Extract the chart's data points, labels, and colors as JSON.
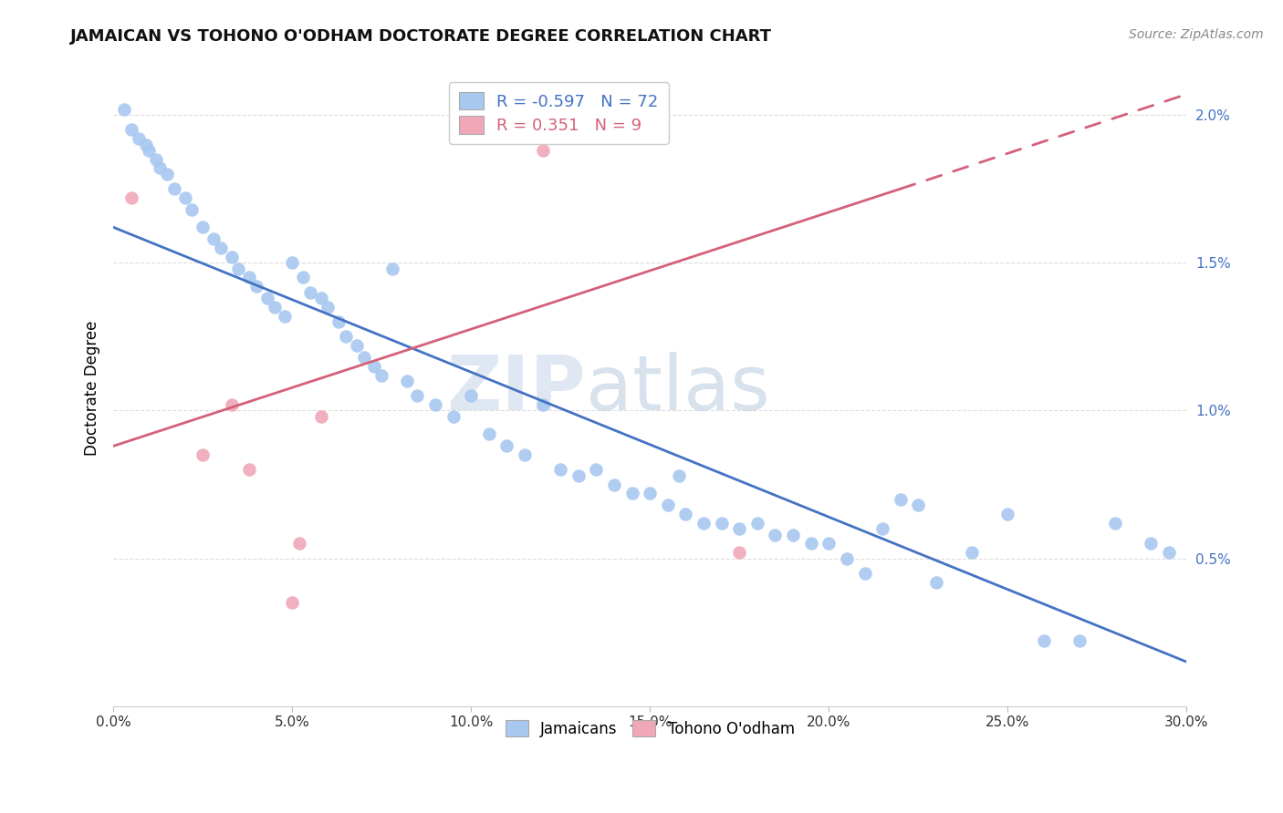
{
  "title": "JAMAICAN VS TOHONO O'ODHAM DOCTORATE DEGREE CORRELATION CHART",
  "source": "Source: ZipAtlas.com",
  "ylabel": "Doctorate Degree",
  "xmin": 0.0,
  "xmax": 30.0,
  "ymin": 0.0,
  "ymax": 2.15,
  "yticks": [
    0.5,
    1.0,
    1.5,
    2.0
  ],
  "xtick_vals": [
    0.0,
    5.0,
    10.0,
    15.0,
    20.0,
    25.0,
    30.0
  ],
  "legend_blue_r": "-0.597",
  "legend_blue_n": "72",
  "legend_pink_r": " 0.351",
  "legend_pink_n": " 9",
  "watermark_zip": "ZIP",
  "watermark_atlas": "atlas",
  "blue_color": "#A8C8F0",
  "pink_color": "#F0A8B8",
  "line_blue": "#4472C4",
  "line_pink": "#D4607A",
  "blue_x": [
    0.3,
    0.5,
    0.7,
    0.9,
    1.0,
    1.2,
    1.3,
    1.5,
    1.7,
    2.0,
    2.2,
    2.5,
    2.8,
    3.0,
    3.3,
    3.5,
    3.8,
    4.0,
    4.3,
    4.5,
    4.8,
    5.0,
    5.3,
    5.5,
    5.8,
    6.0,
    6.3,
    6.5,
    6.8,
    7.0,
    7.3,
    7.5,
    7.8,
    8.2,
    8.5,
    9.0,
    9.5,
    10.0,
    10.5,
    11.0,
    11.5,
    12.0,
    12.5,
    13.0,
    13.5,
    14.0,
    14.5,
    15.0,
    15.5,
    16.0,
    16.5,
    17.0,
    17.5,
    18.0,
    18.5,
    19.0,
    19.5,
    20.0,
    20.5,
    21.0,
    22.0,
    22.5,
    23.0,
    24.0,
    25.0,
    26.0,
    27.0,
    28.0,
    29.0,
    29.5,
    15.8,
    21.5
  ],
  "blue_y": [
    2.02,
    1.95,
    1.92,
    1.9,
    1.88,
    1.85,
    1.82,
    1.8,
    1.75,
    1.72,
    1.68,
    1.62,
    1.58,
    1.55,
    1.52,
    1.48,
    1.45,
    1.42,
    1.38,
    1.35,
    1.32,
    1.5,
    1.45,
    1.4,
    1.38,
    1.35,
    1.3,
    1.25,
    1.22,
    1.18,
    1.15,
    1.12,
    1.48,
    1.1,
    1.05,
    1.02,
    0.98,
    1.05,
    0.92,
    0.88,
    0.85,
    1.02,
    0.8,
    0.78,
    0.8,
    0.75,
    0.72,
    0.72,
    0.68,
    0.65,
    0.62,
    0.62,
    0.6,
    0.62,
    0.58,
    0.58,
    0.55,
    0.55,
    0.5,
    0.45,
    0.7,
    0.68,
    0.42,
    0.52,
    0.65,
    0.22,
    0.22,
    0.62,
    0.55,
    0.52,
    0.78,
    0.6
  ],
  "pink_x": [
    0.5,
    2.5,
    3.3,
    5.2,
    5.8,
    3.8,
    5.0,
    12.0,
    17.5
  ],
  "pink_y": [
    1.72,
    0.85,
    1.02,
    0.55,
    0.98,
    0.8,
    0.35,
    1.88,
    0.52
  ],
  "blue_line_x0": 0.0,
  "blue_line_y0": 1.62,
  "blue_line_x1": 30.0,
  "blue_line_y1": 0.15,
  "pink_line_solid_x0": 0.0,
  "pink_line_solid_y0": 0.88,
  "pink_line_solid_x1": 22.0,
  "pink_line_solid_y1": 1.75,
  "pink_line_dash_x0": 22.0,
  "pink_line_dash_y0": 1.75,
  "pink_line_dash_x1": 30.0,
  "pink_line_dash_y1": 2.07,
  "bg_color": "#FFFFFF",
  "grid_color": "#DDDDDD"
}
